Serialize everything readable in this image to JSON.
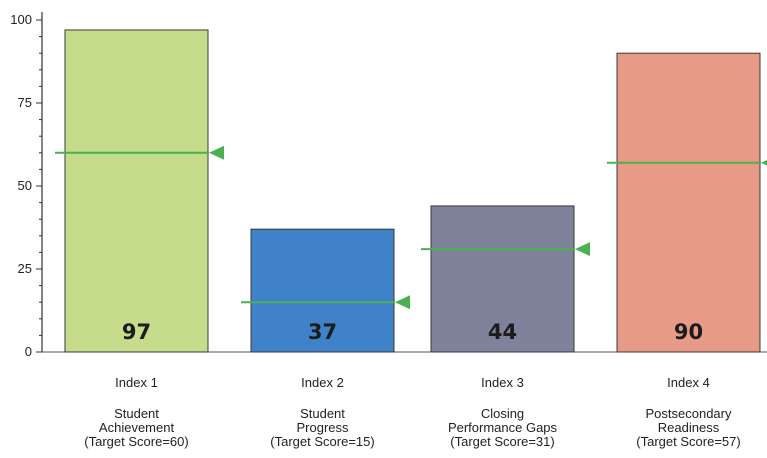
{
  "chart_data": {
    "type": "bar",
    "title": "",
    "xlabel": "",
    "ylabel": "",
    "ylim": [
      0,
      100
    ],
    "yticks": [
      "0",
      "25",
      "50",
      "75",
      "100"
    ],
    "grid": false,
    "categories": [
      {
        "index_label": "Index 1",
        "name_lines": [
          "Student",
          "Achievement",
          "(Target Score=60)"
        ],
        "value": 97,
        "value_label": "97",
        "target": 60,
        "color": "#c5dc8c"
      },
      {
        "index_label": "Index 2",
        "name_lines": [
          "Student",
          "Progress",
          "(Target Score=15)"
        ],
        "value": 37,
        "value_label": "37",
        "target": 15,
        "color": "#3f82c9"
      },
      {
        "index_label": "Index 3",
        "name_lines": [
          "Closing",
          "Performance Gaps",
          "(Target Score=31)"
        ],
        "value": 44,
        "value_label": "44",
        "target": 31,
        "color": "#7e829b"
      },
      {
        "index_label": "Index 4",
        "name_lines": [
          "Postsecondary",
          "Readiness",
          "(Target Score=57)"
        ],
        "value": 90,
        "value_label": "90",
        "target": 57,
        "color": "#e79b87"
      }
    ],
    "target_line_color": "#4caf50"
  }
}
